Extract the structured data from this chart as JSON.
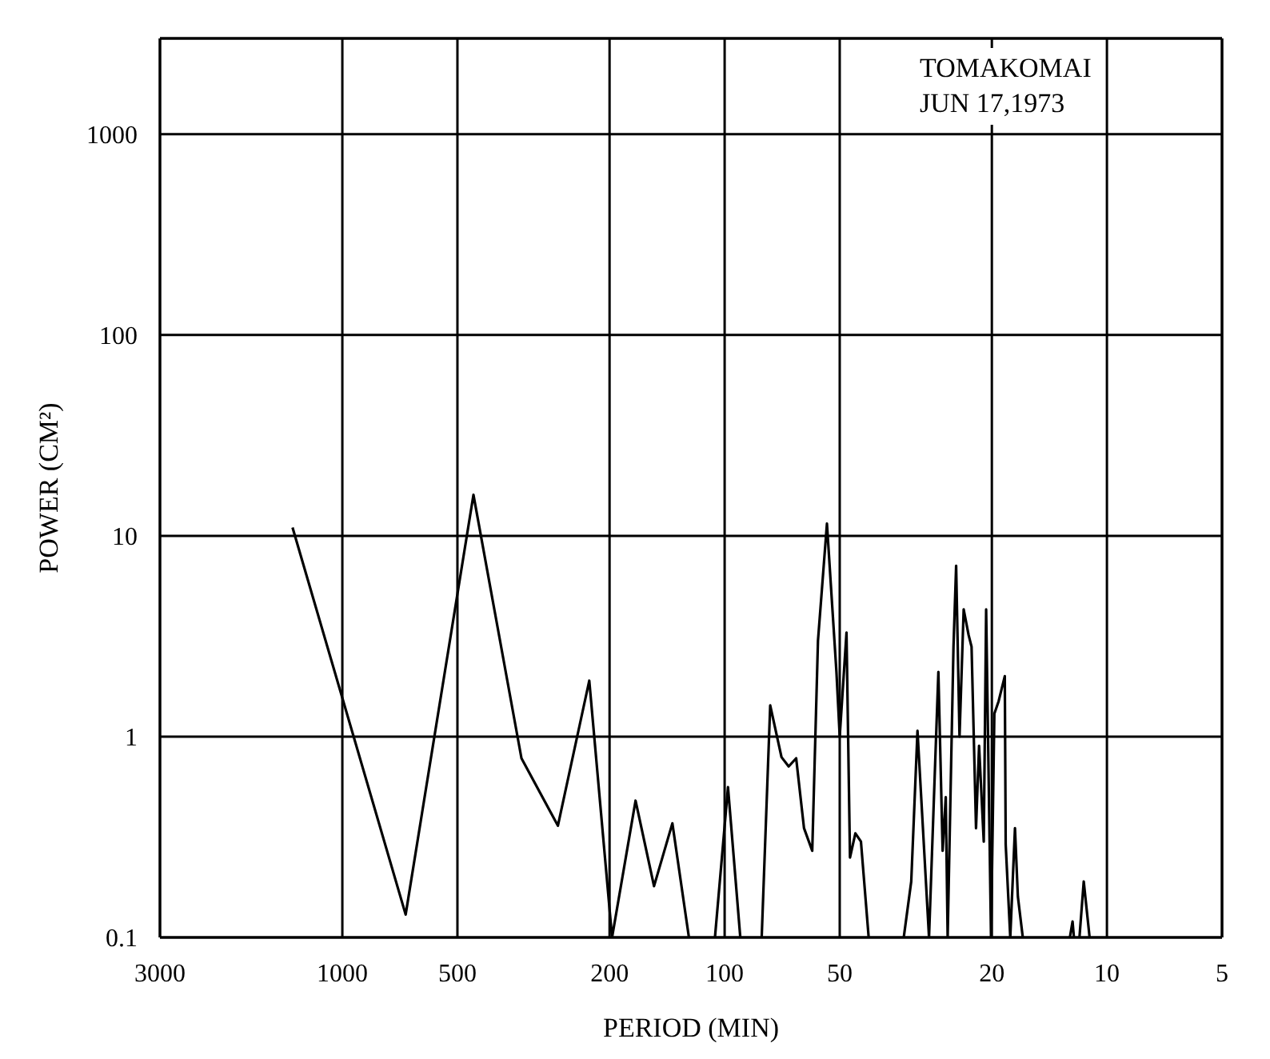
{
  "chart_data": {
    "type": "line",
    "xlabel": "PERIOD (MIN)",
    "ylabel": "POWER (CM²)",
    "annotations": [
      "TOMAKOMAI\nJUN 17,1973"
    ],
    "log": "xy",
    "grid": true,
    "marker": "none",
    "xlim": [
      3000,
      5
    ],
    "xticks": [
      3000,
      1000,
      500,
      200,
      100,
      50,
      20,
      10,
      5
    ],
    "ylim": [
      0.1,
      3000
    ],
    "yticks": [
      0.1,
      1,
      10,
      100,
      1000
    ],
    "series": [
      {
        "color": "#000000",
        "x": [
          1350,
          683,
          454,
          340,
          273,
          226,
          197,
          171,
          153,
          137,
          124,
          110,
          106,
          98,
          91,
          83,
          80,
          76,
          71,
          68,
          65,
          62,
          59,
          57,
          54,
          51,
          50,
          48,
          47,
          45.5,
          44,
          42,
          38,
          34,
          32.5,
          31.3,
          29.2,
          27.6,
          26.9,
          26.4,
          26.1,
          25.2,
          24.8,
          24.3,
          23.7,
          23.0,
          22.6,
          22.0,
          21.6,
          21.0,
          20.7,
          20.1,
          19.7,
          19.2,
          18.5,
          18.4,
          17.9,
          17.4,
          17.1,
          16.6,
          14,
          12.5,
          12.3,
          12.2,
          12,
          11.8,
          11.5,
          11.1
        ],
        "values": [
          11,
          0.13,
          16,
          0.78,
          0.36,
          1.9,
          0.1,
          0.48,
          0.18,
          0.37,
          0.1,
          null,
          0.1,
          0.56,
          0.1,
          null,
          0.1,
          1.43,
          0.79,
          0.71,
          0.78,
          0.35,
          0.27,
          3.0,
          11.5,
          2.1,
          1.0,
          3.3,
          0.25,
          0.33,
          0.3,
          0.1,
          null,
          0.1,
          0.19,
          1.07,
          0.1,
          2.1,
          0.27,
          0.5,
          0.1,
          2.8,
          7.1,
          1.0,
          4.3,
          3.2,
          2.8,
          0.35,
          0.9,
          0.3,
          4.3,
          0.1,
          1.3,
          1.5,
          2.0,
          0.29,
          0.1,
          0.35,
          0.16,
          0.1,
          null,
          0.1,
          0.12,
          0.1,
          null,
          0.1,
          0.19,
          0.1
        ]
      }
    ]
  }
}
